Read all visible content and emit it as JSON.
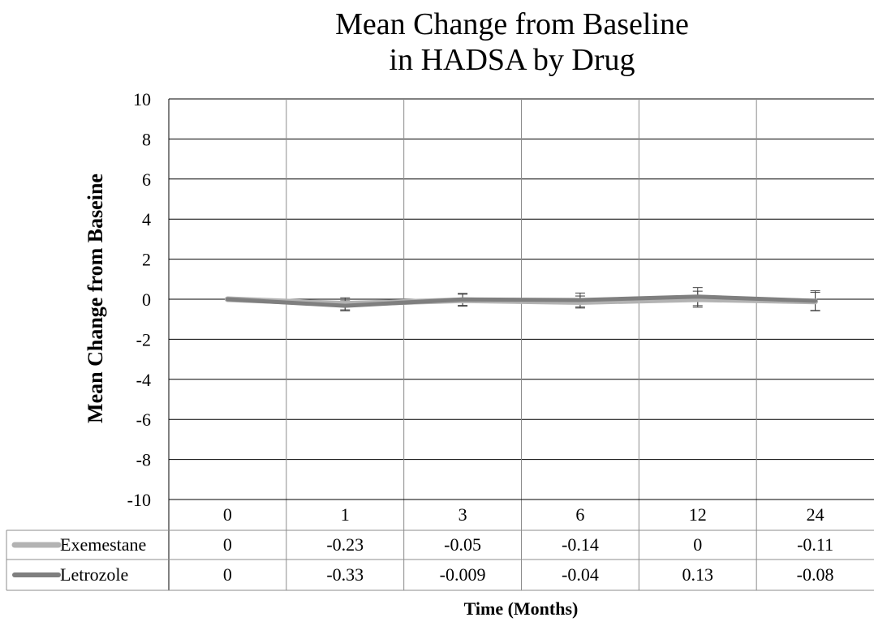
{
  "chart_data": {
    "type": "line",
    "title_lines": [
      "Mean Change from Baseline",
      "in HADSA by Drug"
    ],
    "xlabel": "Time (Months)",
    "ylabel": "Mean Change from Baseine",
    "ylim": [
      -10,
      10
    ],
    "yticks": [
      "10",
      "8",
      "6",
      "4",
      "2",
      "0",
      "-2",
      "-4",
      "-6",
      "-8",
      "-10"
    ],
    "ytick_values": [
      10,
      8,
      6,
      4,
      2,
      0,
      -2,
      -4,
      -6,
      -8,
      -10
    ],
    "categories": [
      "0",
      "1",
      "3",
      "6",
      "12",
      "24"
    ],
    "grid": true,
    "legend": "data table below x-axis",
    "series": [
      {
        "name": "Exemestane",
        "color": "#b3b3b3",
        "values": [
          0,
          -0.23,
          -0.05,
          -0.14,
          0,
          -0.11
        ],
        "labels": [
          "0",
          "-0.23",
          "-0.05",
          "-0.14",
          "0",
          "-0.11"
        ],
        "error": [
          0,
          0.3,
          0.3,
          0.3,
          0.4,
          0.45
        ]
      },
      {
        "name": "Letrozole",
        "color": "#7f7f7f",
        "values": [
          0,
          -0.33,
          -0.009,
          -0.04,
          0.13,
          -0.08
        ],
        "labels": [
          "0",
          "-0.33",
          "-0.009",
          "-0.04",
          "0.13",
          "-0.08"
        ],
        "error": [
          0,
          0.25,
          0.3,
          0.35,
          0.45,
          0.5
        ]
      }
    ]
  }
}
